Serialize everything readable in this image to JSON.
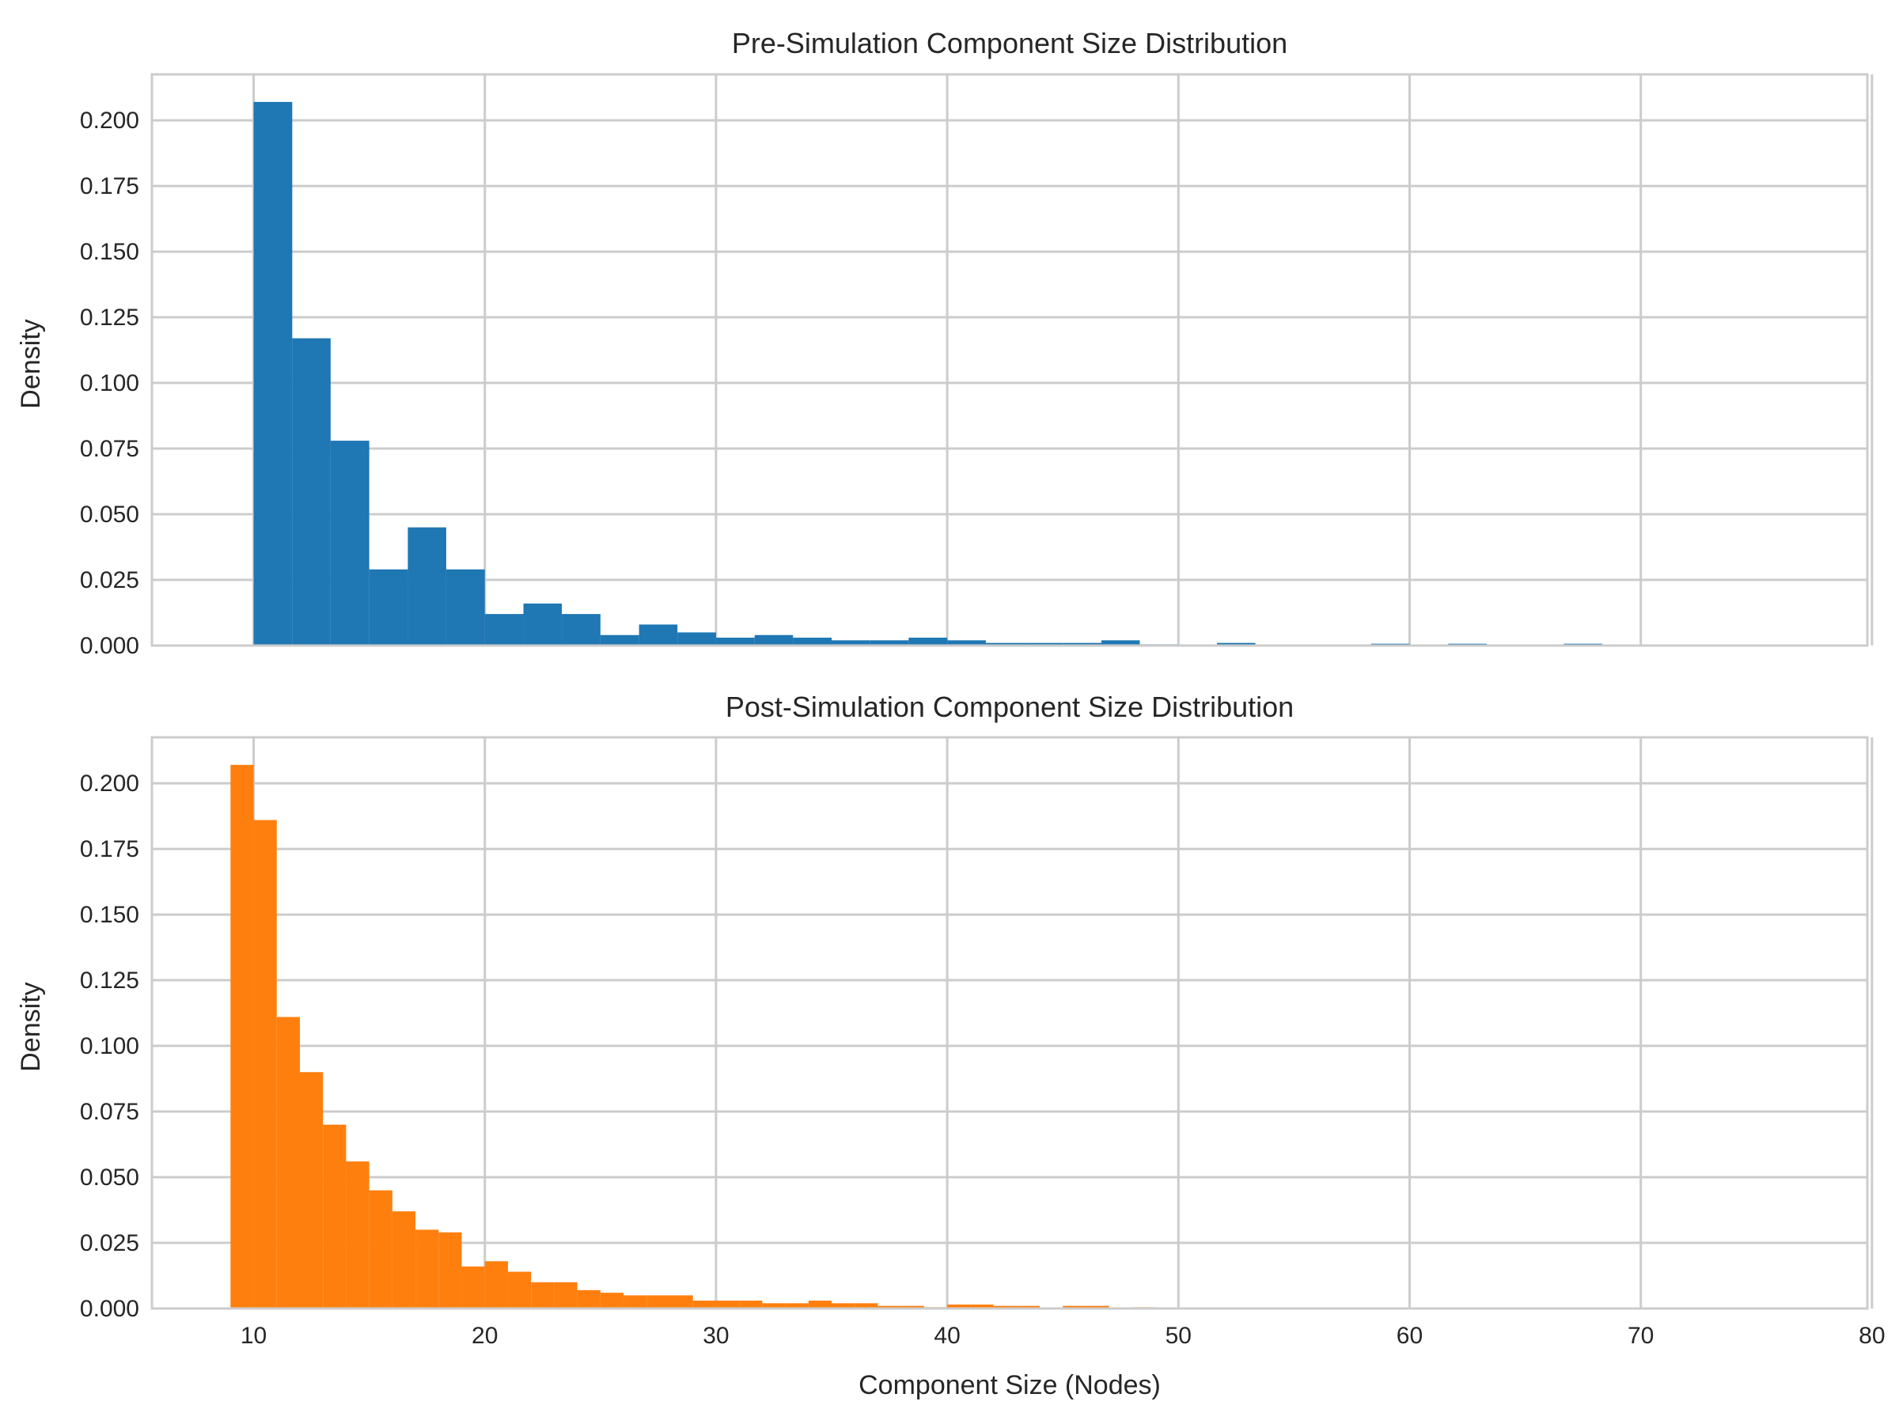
{
  "chart_data": [
    {
      "type": "bar",
      "title": "Pre-Simulation Component Size Distribution",
      "xlabel": "",
      "ylabel": "Density",
      "xlim": [
        5.6,
        79.8
      ],
      "ylim": [
        0,
        0.2175
      ],
      "xticks": [
        10,
        20,
        30,
        40,
        50,
        60,
        70,
        80
      ],
      "yticks": [
        0.0,
        0.025,
        0.05,
        0.075,
        0.1,
        0.125,
        0.15,
        0.175,
        0.2
      ],
      "ytick_labels": [
        "0.000",
        "0.025",
        "0.050",
        "0.075",
        "0.100",
        "0.125",
        "0.150",
        "0.175",
        "0.200"
      ],
      "xtick_labels_visible": false,
      "grid": true,
      "color": "#1f77b4",
      "bin_edges": [
        10.0,
        11.67,
        13.33,
        15.0,
        16.67,
        18.33,
        20.0,
        21.67,
        23.33,
        25.0,
        26.67,
        28.33,
        30.0,
        31.67,
        33.33,
        35.0,
        36.67,
        38.33,
        40.0,
        41.67,
        43.33,
        45.0,
        46.67,
        48.33,
        50.0,
        51.67,
        53.33,
        55.0,
        56.67,
        58.33,
        60.0,
        61.67,
        63.33,
        65.0,
        66.67,
        68.33
      ],
      "values": [
        0.207,
        0.117,
        0.078,
        0.029,
        0.045,
        0.029,
        0.012,
        0.016,
        0.012,
        0.004,
        0.008,
        0.005,
        0.003,
        0.004,
        0.003,
        0.002,
        0.002,
        0.003,
        0.002,
        0.001,
        0.001,
        0.001,
        0.002,
        0.0005,
        0.0,
        0.001,
        0.0,
        0.0,
        0.0,
        0.0007,
        0.0,
        0.0007,
        0.0,
        0.0,
        0.0007
      ]
    },
    {
      "type": "bar",
      "title": "Post-Simulation Component Size Distribution",
      "xlabel": "Component Size (Nodes)",
      "ylabel": "Density",
      "xlim": [
        5.6,
        79.8
      ],
      "ylim": [
        0,
        0.2175
      ],
      "xticks": [
        10,
        20,
        30,
        40,
        50,
        60,
        70,
        80
      ],
      "xtick_labels": [
        "10",
        "20",
        "30",
        "40",
        "50",
        "60",
        "70",
        "80"
      ],
      "yticks": [
        0.0,
        0.025,
        0.05,
        0.075,
        0.1,
        0.125,
        0.15,
        0.175,
        0.2
      ],
      "ytick_labels": [
        "0.000",
        "0.025",
        "0.050",
        "0.075",
        "0.100",
        "0.125",
        "0.150",
        "0.175",
        "0.200"
      ],
      "grid": true,
      "color": "#ff7f0e",
      "bin_edges": [
        9,
        10,
        11,
        12,
        13,
        14,
        15,
        16,
        17,
        18,
        19,
        20,
        21,
        22,
        23,
        24,
        25,
        26,
        27,
        28,
        29,
        30,
        31,
        32,
        33,
        34,
        35,
        36,
        37,
        38,
        39,
        40,
        41,
        42,
        43,
        44,
        45,
        46,
        47,
        48,
        49
      ],
      "values": [
        0.207,
        0.186,
        0.111,
        0.09,
        0.07,
        0.056,
        0.045,
        0.037,
        0.03,
        0.029,
        0.016,
        0.018,
        0.014,
        0.01,
        0.01,
        0.007,
        0.006,
        0.005,
        0.005,
        0.005,
        0.003,
        0.003,
        0.003,
        0.002,
        0.002,
        0.003,
        0.002,
        0.002,
        0.001,
        0.001,
        0.0005,
        0.0015,
        0.0015,
        0.001,
        0.001,
        0.0,
        0.001,
        0.001,
        0.0,
        0.0005
      ]
    }
  ]
}
